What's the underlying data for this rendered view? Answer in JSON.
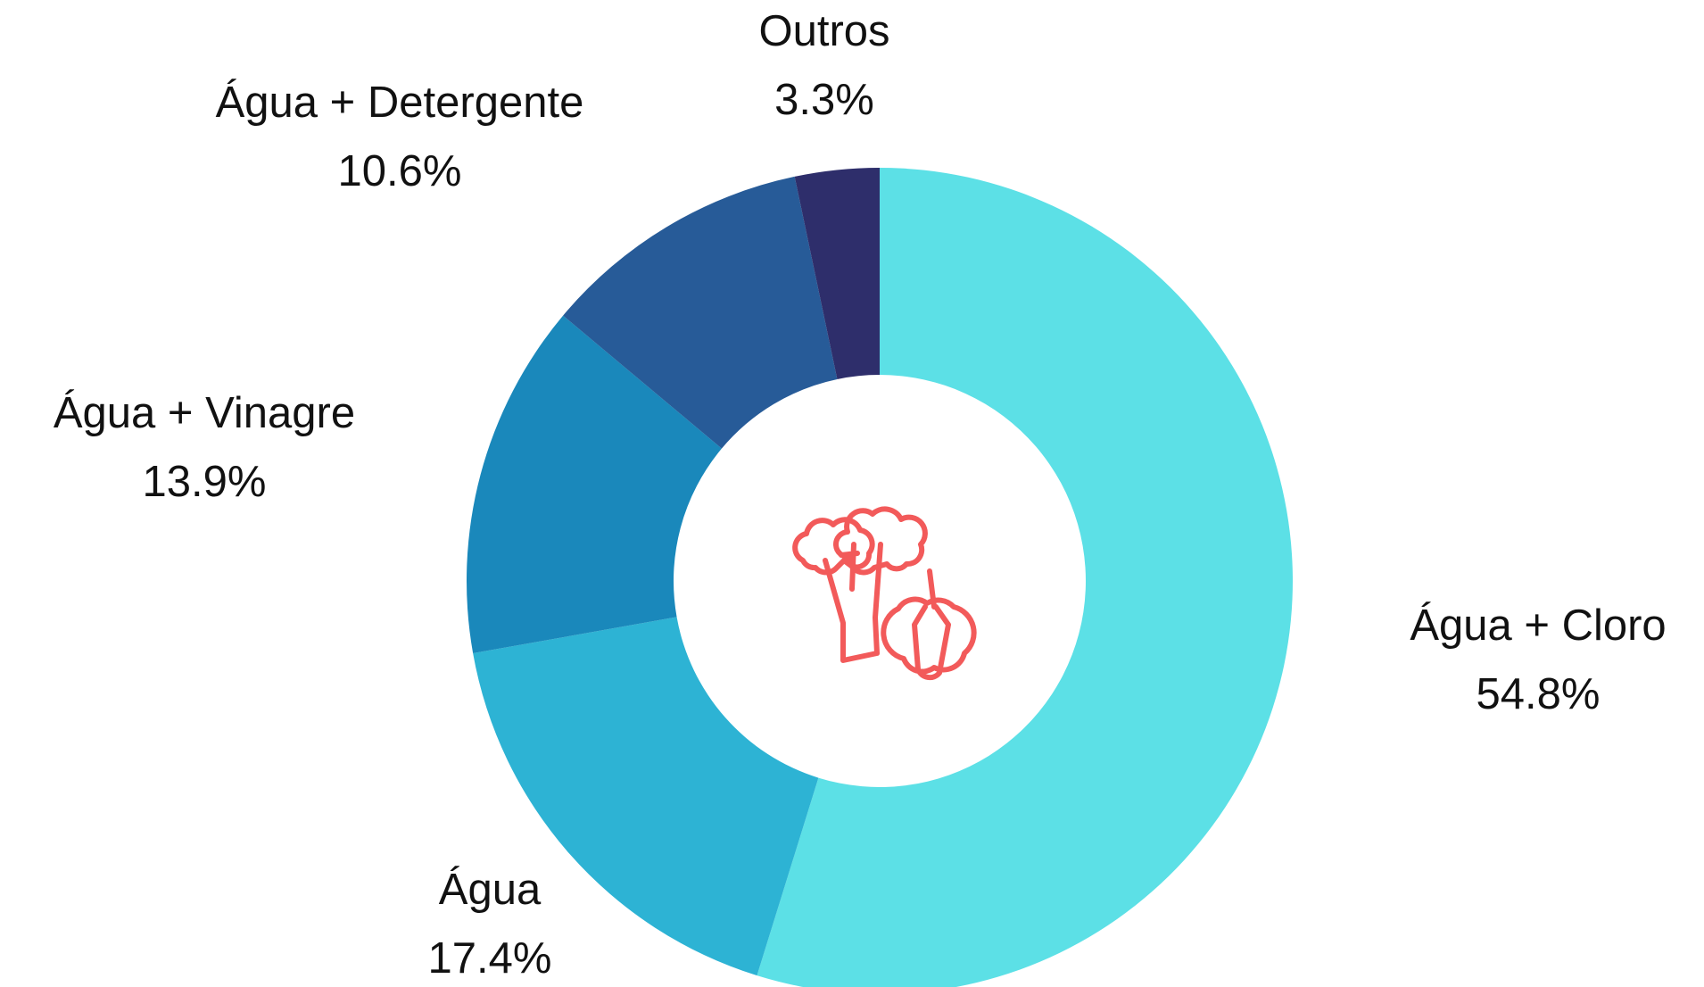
{
  "chart_data": {
    "type": "donut",
    "categories": [
      "Água + Cloro",
      "Água",
      "Água + Vinagre",
      "Água + Detergente",
      "Outros"
    ],
    "values": [
      54.8,
      17.4,
      13.9,
      10.6,
      3.3
    ],
    "value_labels": [
      "54.8%",
      "17.4%",
      "13.9%",
      "10.6%",
      "3.3%"
    ],
    "colors": [
      "#5ce0e6",
      "#2db3d4",
      "#1a88bb",
      "#275b98",
      "#2e2e6b"
    ]
  }
}
